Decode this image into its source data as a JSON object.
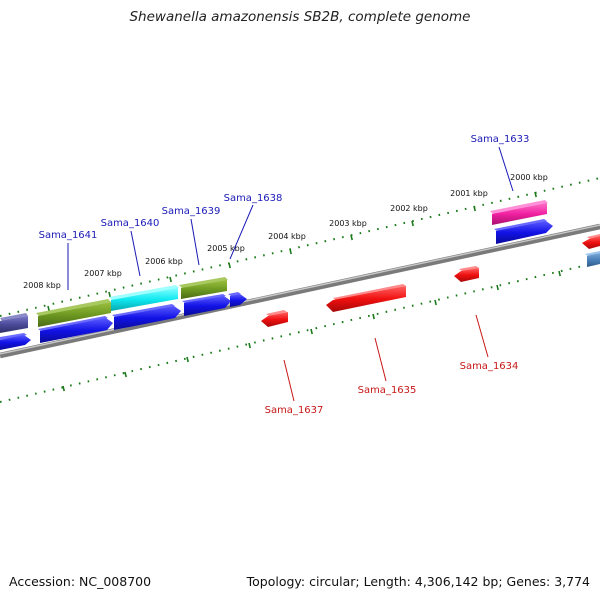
{
  "header": {
    "title": "Shewanella amazonensis SB2B, complete genome"
  },
  "footer": {
    "accession": "Accession: NC_008700",
    "summary": "Topology: circular; Length: 4,306,142 bp; Genes: 3,774"
  },
  "kbp_labels": [
    "2008 kbp",
    "2007 kbp",
    "2006 kbp",
    "2005 kbp",
    "2004 kbp",
    "2003 kbp",
    "2002 kbp",
    "2001 kbp",
    "2000 kbp"
  ],
  "genes": {
    "forward": [
      "Sama_1641",
      "Sama_1640",
      "Sama_1639",
      "Sama_1638",
      "Sama_1633"
    ],
    "reverse": [
      "Sama_1637",
      "Sama_1635",
      "Sama_1634"
    ]
  },
  "colors": {
    "forward_gene": "#1212e6",
    "reverse_gene": "#f01010",
    "cog_olive": "#6e9a22",
    "cog_cyan": "#10e8f0",
    "cog_pink": "#f020a0",
    "cog_purple": "#4a4a9a",
    "cog_steel": "#4a7fb8",
    "backbone": "#808080",
    "ticks": "#1a7a1a"
  }
}
